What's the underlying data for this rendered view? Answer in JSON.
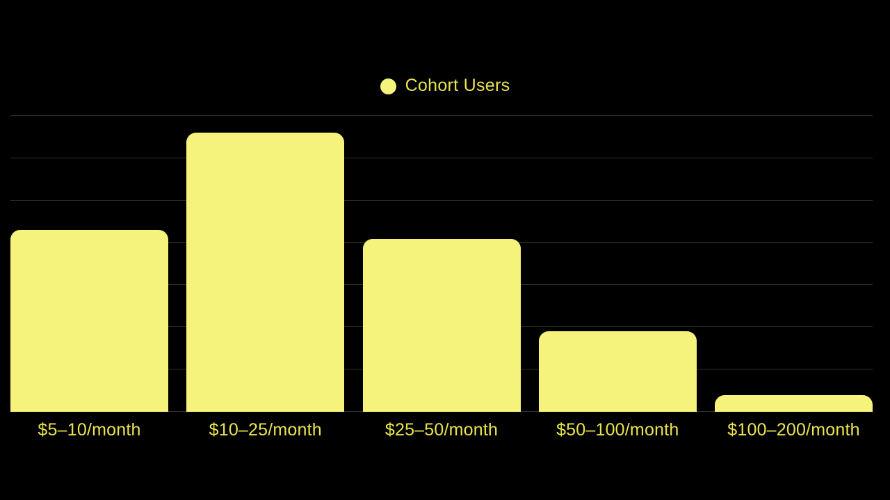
{
  "colors": {
    "background": "#000000",
    "bar_fill": "#F5F37C",
    "label_text": "#EAE44E",
    "gridline": "rgba(245, 243, 124, 0.22)"
  },
  "legend": {
    "label": "Cohort Users"
  },
  "chart_data": {
    "type": "bar",
    "title": "",
    "categories": [
      "$5–10/month",
      "$10–25/month",
      "$25–50/month",
      "$50–100/month",
      "$100–200/month"
    ],
    "series": [
      {
        "name": "Cohort Users",
        "values": [
          430,
          660,
          410,
          190,
          40
        ]
      }
    ],
    "xlabel": "",
    "ylabel": "",
    "ylim": [
      0,
      700
    ],
    "gridline_step": 100,
    "grid": "horizontal",
    "legend_position": "top-center",
    "y_tick_labels": []
  }
}
